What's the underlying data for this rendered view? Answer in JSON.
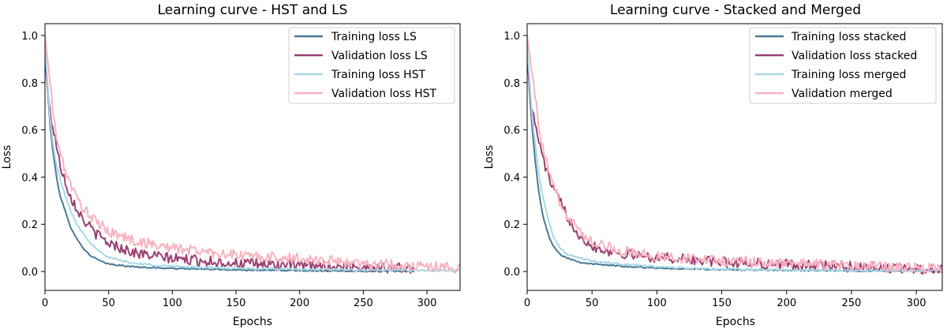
{
  "chart_data": [
    {
      "type": "line",
      "title": "Learning curve - HST and LS",
      "xlabel": "Epochs",
      "ylabel": "Loss",
      "xlim": [
        0,
        326
      ],
      "ylim": [
        -0.08,
        1.05
      ],
      "xticks": [
        0,
        50,
        100,
        150,
        200,
        250,
        300
      ],
      "yticks": [
        0.0,
        0.2,
        0.4,
        0.6,
        0.8,
        1.0
      ],
      "xtick_labels": [
        "0",
        "50",
        "100",
        "150",
        "200",
        "250",
        "300"
      ],
      "ytick_labels": [
        "0.0",
        "0.2",
        "0.4",
        "0.6",
        "0.8",
        "1.0"
      ],
      "legend_position": "top-right",
      "series": [
        {
          "name": "Training loss LS",
          "color": "#4a7a96",
          "x_max": 290,
          "points": [
            [
              0,
              0.95
            ],
            [
              2,
              0.78
            ],
            [
              4,
              0.62
            ],
            [
              6,
              0.52
            ],
            [
              8,
              0.44
            ],
            [
              10,
              0.37
            ],
            [
              12,
              0.32
            ],
            [
              15,
              0.27
            ],
            [
              18,
              0.22
            ],
            [
              20,
              0.19
            ],
            [
              23,
              0.16
            ],
            [
              26,
              0.13
            ],
            [
              30,
              0.1
            ],
            [
              35,
              0.07
            ],
            [
              40,
              0.055
            ],
            [
              45,
              0.04
            ],
            [
              50,
              0.032
            ],
            [
              60,
              0.025
            ],
            [
              70,
              0.02
            ],
            [
              80,
              0.017
            ],
            [
              100,
              0.013
            ],
            [
              125,
              0.01
            ],
            [
              150,
              0.007
            ],
            [
              200,
              0.004
            ],
            [
              250,
              0.002
            ],
            [
              290,
              0.001
            ]
          ],
          "noise": 0.002
        },
        {
          "name": "Validation loss LS",
          "color": "#9b3f72",
          "x_max": 290,
          "points": [
            [
              0,
              0.9
            ],
            [
              3,
              0.72
            ],
            [
              5,
              0.64
            ],
            [
              8,
              0.57
            ],
            [
              10,
              0.5
            ],
            [
              12,
              0.45
            ],
            [
              15,
              0.4
            ],
            [
              18,
              0.35
            ],
            [
              20,
              0.32
            ],
            [
              25,
              0.27
            ],
            [
              30,
              0.22
            ],
            [
              35,
              0.19
            ],
            [
              40,
              0.16
            ],
            [
              45,
              0.14
            ],
            [
              50,
              0.12
            ],
            [
              60,
              0.1
            ],
            [
              70,
              0.08
            ],
            [
              80,
              0.07
            ],
            [
              100,
              0.055
            ],
            [
              125,
              0.045
            ],
            [
              150,
              0.035
            ],
            [
              175,
              0.03
            ],
            [
              200,
              0.025
            ],
            [
              225,
              0.022
            ],
            [
              250,
              0.02
            ],
            [
              275,
              0.015
            ],
            [
              290,
              0.012
            ]
          ],
          "noise": 0.016
        },
        {
          "name": "Training loss HST",
          "color": "#a8d8e4",
          "x_max": 326,
          "points": [
            [
              0,
              0.96
            ],
            [
              2,
              0.8
            ],
            [
              4,
              0.65
            ],
            [
              6,
              0.55
            ],
            [
              8,
              0.48
            ],
            [
              10,
              0.43
            ],
            [
              13,
              0.37
            ],
            [
              16,
              0.32
            ],
            [
              20,
              0.26
            ],
            [
              25,
              0.2
            ],
            [
              30,
              0.16
            ],
            [
              35,
              0.125
            ],
            [
              40,
              0.1
            ],
            [
              45,
              0.08
            ],
            [
              50,
              0.06
            ],
            [
              60,
              0.045
            ],
            [
              70,
              0.035
            ],
            [
              80,
              0.03
            ],
            [
              100,
              0.022
            ],
            [
              125,
              0.017
            ],
            [
              150,
              0.013
            ],
            [
              200,
              0.009
            ],
            [
              250,
              0.006
            ],
            [
              300,
              0.004
            ],
            [
              326,
              0.003
            ]
          ],
          "noise": 0.003
        },
        {
          "name": "Validation loss HST",
          "color": "#f7b3c0",
          "x_max": 326,
          "points": [
            [
              0,
              1.0
            ],
            [
              2,
              0.9
            ],
            [
              4,
              0.8
            ],
            [
              6,
              0.7
            ],
            [
              8,
              0.6
            ],
            [
              10,
              0.55
            ],
            [
              13,
              0.48
            ],
            [
              16,
              0.43
            ],
            [
              20,
              0.37
            ],
            [
              25,
              0.31
            ],
            [
              30,
              0.27
            ],
            [
              35,
              0.24
            ],
            [
              40,
              0.21
            ],
            [
              45,
              0.19
            ],
            [
              50,
              0.17
            ],
            [
              60,
              0.15
            ],
            [
              70,
              0.13
            ],
            [
              80,
              0.12
            ],
            [
              100,
              0.1
            ],
            [
              125,
              0.085
            ],
            [
              150,
              0.07
            ],
            [
              175,
              0.06
            ],
            [
              200,
              0.055
            ],
            [
              225,
              0.045
            ],
            [
              250,
              0.035
            ],
            [
              275,
              0.028
            ],
            [
              300,
              0.022
            ],
            [
              326,
              0.015
            ]
          ],
          "noise": 0.016
        }
      ]
    },
    {
      "type": "line",
      "title": "Learning curve - Stacked and Merged",
      "xlabel": "Epochs",
      "ylabel": "Loss",
      "xlim": [
        0,
        320
      ],
      "ylim": [
        -0.08,
        1.05
      ],
      "xticks": [
        0,
        50,
        100,
        150,
        200,
        250,
        300
      ],
      "yticks": [
        0.0,
        0.2,
        0.4,
        0.6,
        0.8,
        1.0
      ],
      "xtick_labels": [
        "0",
        "50",
        "100",
        "150",
        "200",
        "250",
        "300"
      ],
      "ytick_labels": [
        "0.0",
        "0.2",
        "0.4",
        "0.6",
        "0.8",
        "1.0"
      ],
      "legend_position": "top-right",
      "series": [
        {
          "name": "Training loss stacked",
          "color": "#4a7a96",
          "x_max": 320,
          "points": [
            [
              0,
              0.95
            ],
            [
              2,
              0.75
            ],
            [
              4,
              0.6
            ],
            [
              6,
              0.48
            ],
            [
              8,
              0.38
            ],
            [
              10,
              0.3
            ],
            [
              12,
              0.24
            ],
            [
              15,
              0.18
            ],
            [
              18,
              0.13
            ],
            [
              20,
              0.11
            ],
            [
              23,
              0.09
            ],
            [
              26,
              0.07
            ],
            [
              30,
              0.06
            ],
            [
              35,
              0.05
            ],
            [
              40,
              0.04
            ],
            [
              50,
              0.032
            ],
            [
              60,
              0.028
            ],
            [
              80,
              0.02
            ],
            [
              100,
              0.015
            ],
            [
              125,
              0.011
            ],
            [
              150,
              0.008
            ],
            [
              200,
              0.005
            ],
            [
              250,
              0.003
            ],
            [
              320,
              0.002
            ]
          ],
          "noise": 0.002
        },
        {
          "name": "Validation loss stacked",
          "color": "#9b3f72",
          "x_max": 320,
          "points": [
            [
              0,
              0.9
            ],
            [
              3,
              0.72
            ],
            [
              5,
              0.65
            ],
            [
              8,
              0.58
            ],
            [
              10,
              0.53
            ],
            [
              12,
              0.48
            ],
            [
              15,
              0.43
            ],
            [
              18,
              0.38
            ],
            [
              20,
              0.35
            ],
            [
              25,
              0.3
            ],
            [
              30,
              0.24
            ],
            [
              35,
              0.2
            ],
            [
              40,
              0.16
            ],
            [
              45,
              0.13
            ],
            [
              50,
              0.11
            ],
            [
              60,
              0.09
            ],
            [
              70,
              0.08
            ],
            [
              80,
              0.07
            ],
            [
              100,
              0.06
            ],
            [
              125,
              0.05
            ],
            [
              150,
              0.04
            ],
            [
              175,
              0.035
            ],
            [
              200,
              0.03
            ],
            [
              225,
              0.025
            ],
            [
              250,
              0.02
            ],
            [
              275,
              0.015
            ],
            [
              300,
              0.012
            ],
            [
              320,
              0.01
            ]
          ],
          "noise": 0.016
        },
        {
          "name": "Training loss merged",
          "color": "#a8d8e4",
          "x_max": 320,
          "points": [
            [
              0,
              0.96
            ],
            [
              2,
              0.8
            ],
            [
              4,
              0.65
            ],
            [
              6,
              0.55
            ],
            [
              8,
              0.46
            ],
            [
              10,
              0.38
            ],
            [
              12,
              0.32
            ],
            [
              15,
              0.25
            ],
            [
              18,
              0.19
            ],
            [
              20,
              0.15
            ],
            [
              23,
              0.12
            ],
            [
              26,
              0.095
            ],
            [
              30,
              0.075
            ],
            [
              35,
              0.065
            ],
            [
              40,
              0.057
            ],
            [
              50,
              0.045
            ],
            [
              60,
              0.038
            ],
            [
              80,
              0.028
            ],
            [
              100,
              0.02
            ],
            [
              125,
              0.014
            ],
            [
              150,
              0.01
            ],
            [
              200,
              0.006
            ],
            [
              250,
              0.004
            ],
            [
              320,
              0.003
            ]
          ],
          "noise": 0.003
        },
        {
          "name": "Validation merged",
          "color": "#f7b3c0",
          "x_max": 320,
          "points": [
            [
              0,
              1.0
            ],
            [
              2,
              0.92
            ],
            [
              4,
              0.85
            ],
            [
              6,
              0.75
            ],
            [
              8,
              0.65
            ],
            [
              10,
              0.58
            ],
            [
              12,
              0.52
            ],
            [
              15,
              0.46
            ],
            [
              18,
              0.4
            ],
            [
              20,
              0.36
            ],
            [
              25,
              0.3
            ],
            [
              30,
              0.25
            ],
            [
              35,
              0.21
            ],
            [
              40,
              0.17
            ],
            [
              45,
              0.15
            ],
            [
              50,
              0.13
            ],
            [
              60,
              0.11
            ],
            [
              70,
              0.09
            ],
            [
              80,
              0.08
            ],
            [
              100,
              0.065
            ],
            [
              125,
              0.055
            ],
            [
              150,
              0.045
            ],
            [
              175,
              0.04
            ],
            [
              200,
              0.035
            ],
            [
              225,
              0.03
            ],
            [
              250,
              0.025
            ],
            [
              275,
              0.02
            ],
            [
              300,
              0.017
            ],
            [
              320,
              0.015
            ]
          ],
          "noise": 0.016
        }
      ]
    }
  ]
}
